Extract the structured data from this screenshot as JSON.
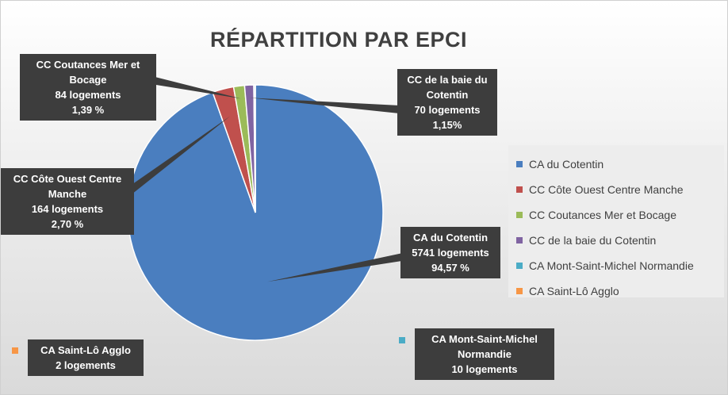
{
  "chart_data": {
    "type": "pie",
    "title": "RÉPARTITION PAR EPCI",
    "series": [
      {
        "name": "CA du Cotentin",
        "value": 5741,
        "percent_label": "94,57 %",
        "count_label": "5741 logements",
        "color": "#4a7ebf"
      },
      {
        "name": "CC Côte Ouest Centre Manche",
        "value": 164,
        "percent_label": "2,70 %",
        "count_label": "164 logements",
        "color": "#c0504d"
      },
      {
        "name": "CC Coutances Mer et Bocage",
        "value": 84,
        "percent_label": "1,39 %",
        "count_label": "84 logements",
        "color": "#9bbb59"
      },
      {
        "name": "CC de la baie du Cotentin",
        "value": 70,
        "percent_label": "1,15%",
        "count_label": "70 logements",
        "color": "#8064a2"
      },
      {
        "name": "CA Mont-Saint-Michel Normandie",
        "value": 10,
        "percent_label": "",
        "count_label": "10 logements",
        "color": "#4bacc6"
      },
      {
        "name": "CA Saint-Lô Agglo",
        "value": 2,
        "percent_label": "",
        "count_label": "2 logements",
        "color": "#f79646"
      }
    ],
    "legend_position": "right"
  },
  "callouts": {
    "cotentin": {
      "line1": "CA du Cotentin",
      "line2": "5741 logements",
      "line3": "94,57 %"
    },
    "cocm": {
      "line1": "CC Côte Ouest Centre",
      "line2": "Manche",
      "line3": "164 logements",
      "line4": "2,70 %"
    },
    "coutances": {
      "line1": "CC Coutances  Mer et",
      "line2": "Bocage",
      "line3": "84 logements",
      "line4": "1,39 %"
    },
    "baie": {
      "line1": "CC de  la baie du",
      "line2": "Cotentin",
      "line3": "70 logements",
      "line4": "1,15%"
    },
    "msm": {
      "line1": "CA Mont-Saint-Michel",
      "line2": "Normandie",
      "line3": "10 logements"
    },
    "stlo": {
      "line1": "CA Saint-Lô Agglo",
      "line2": "2 logements"
    }
  },
  "legend": [
    {
      "label": "CA du Cotentin",
      "color": "#4a7ebf"
    },
    {
      "label": "CC Côte Ouest Centre Manche",
      "color": "#c0504d"
    },
    {
      "label": "CC Coutances Mer et Bocage",
      "color": "#9bbb59"
    },
    {
      "label": "CC de la baie du Cotentin",
      "color": "#8064a2"
    },
    {
      "label": "CA Mont-Saint-Michel Normandie",
      "color": "#4bacc6"
    },
    {
      "label": "CA Saint-Lô Agglo",
      "color": "#f79646"
    }
  ]
}
